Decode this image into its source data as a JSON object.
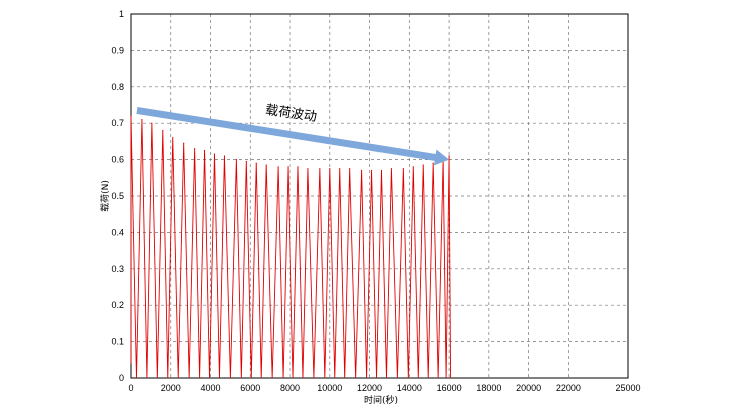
{
  "chart_data": {
    "type": "line",
    "title": "",
    "xlabel": "时间(秒)",
    "ylabel": "载荷(N)",
    "xlim": [
      0,
      25000
    ],
    "ylim": [
      0,
      1
    ],
    "x_ticks": [
      0,
      2000,
      4000,
      6000,
      8000,
      10000,
      12000,
      14000,
      16000,
      18000,
      20000,
      22000,
      25000
    ],
    "y_ticks": [
      0,
      0.1,
      0.2,
      0.3,
      0.4,
      0.5,
      0.6,
      0.7,
      0.8,
      0.9,
      1
    ],
    "grid": true,
    "series_color": "#e00000",
    "series": [
      {
        "peaks": [
          {
            "x": 0,
            "y": 0.72
          },
          {
            "x": 550,
            "y": 0.71
          },
          {
            "x": 1050,
            "y": 0.7
          },
          {
            "x": 1600,
            "y": 0.68
          },
          {
            "x": 2100,
            "y": 0.66
          },
          {
            "x": 2650,
            "y": 0.645
          },
          {
            "x": 3200,
            "y": 0.63
          },
          {
            "x": 3700,
            "y": 0.625
          },
          {
            "x": 4200,
            "y": 0.615
          },
          {
            "x": 4700,
            "y": 0.61
          },
          {
            "x": 5300,
            "y": 0.6
          },
          {
            "x": 5800,
            "y": 0.595
          },
          {
            "x": 6300,
            "y": 0.59
          },
          {
            "x": 6800,
            "y": 0.585
          },
          {
            "x": 7400,
            "y": 0.58
          },
          {
            "x": 7900,
            "y": 0.58
          },
          {
            "x": 8400,
            "y": 0.58
          },
          {
            "x": 8900,
            "y": 0.575
          },
          {
            "x": 9500,
            "y": 0.575
          },
          {
            "x": 10000,
            "y": 0.575
          },
          {
            "x": 10500,
            "y": 0.575
          },
          {
            "x": 11000,
            "y": 0.575
          },
          {
            "x": 11600,
            "y": 0.57
          },
          {
            "x": 12100,
            "y": 0.57
          },
          {
            "x": 12600,
            "y": 0.57
          },
          {
            "x": 13100,
            "y": 0.575
          },
          {
            "x": 13700,
            "y": 0.575
          },
          {
            "x": 14200,
            "y": 0.58
          },
          {
            "x": 14700,
            "y": 0.585
          },
          {
            "x": 15200,
            "y": 0.59
          },
          {
            "x": 15700,
            "y": 0.6
          },
          {
            "x": 16000,
            "y": 0.61
          }
        ]
      }
    ],
    "annotations": [
      {
        "text": "载荷波动",
        "arrow_from": {
          "x": 300,
          "y": 0.735
        },
        "arrow_to": {
          "x": 16000,
          "y": 0.6
        },
        "arrow_color": "#7ea7db"
      }
    ]
  }
}
